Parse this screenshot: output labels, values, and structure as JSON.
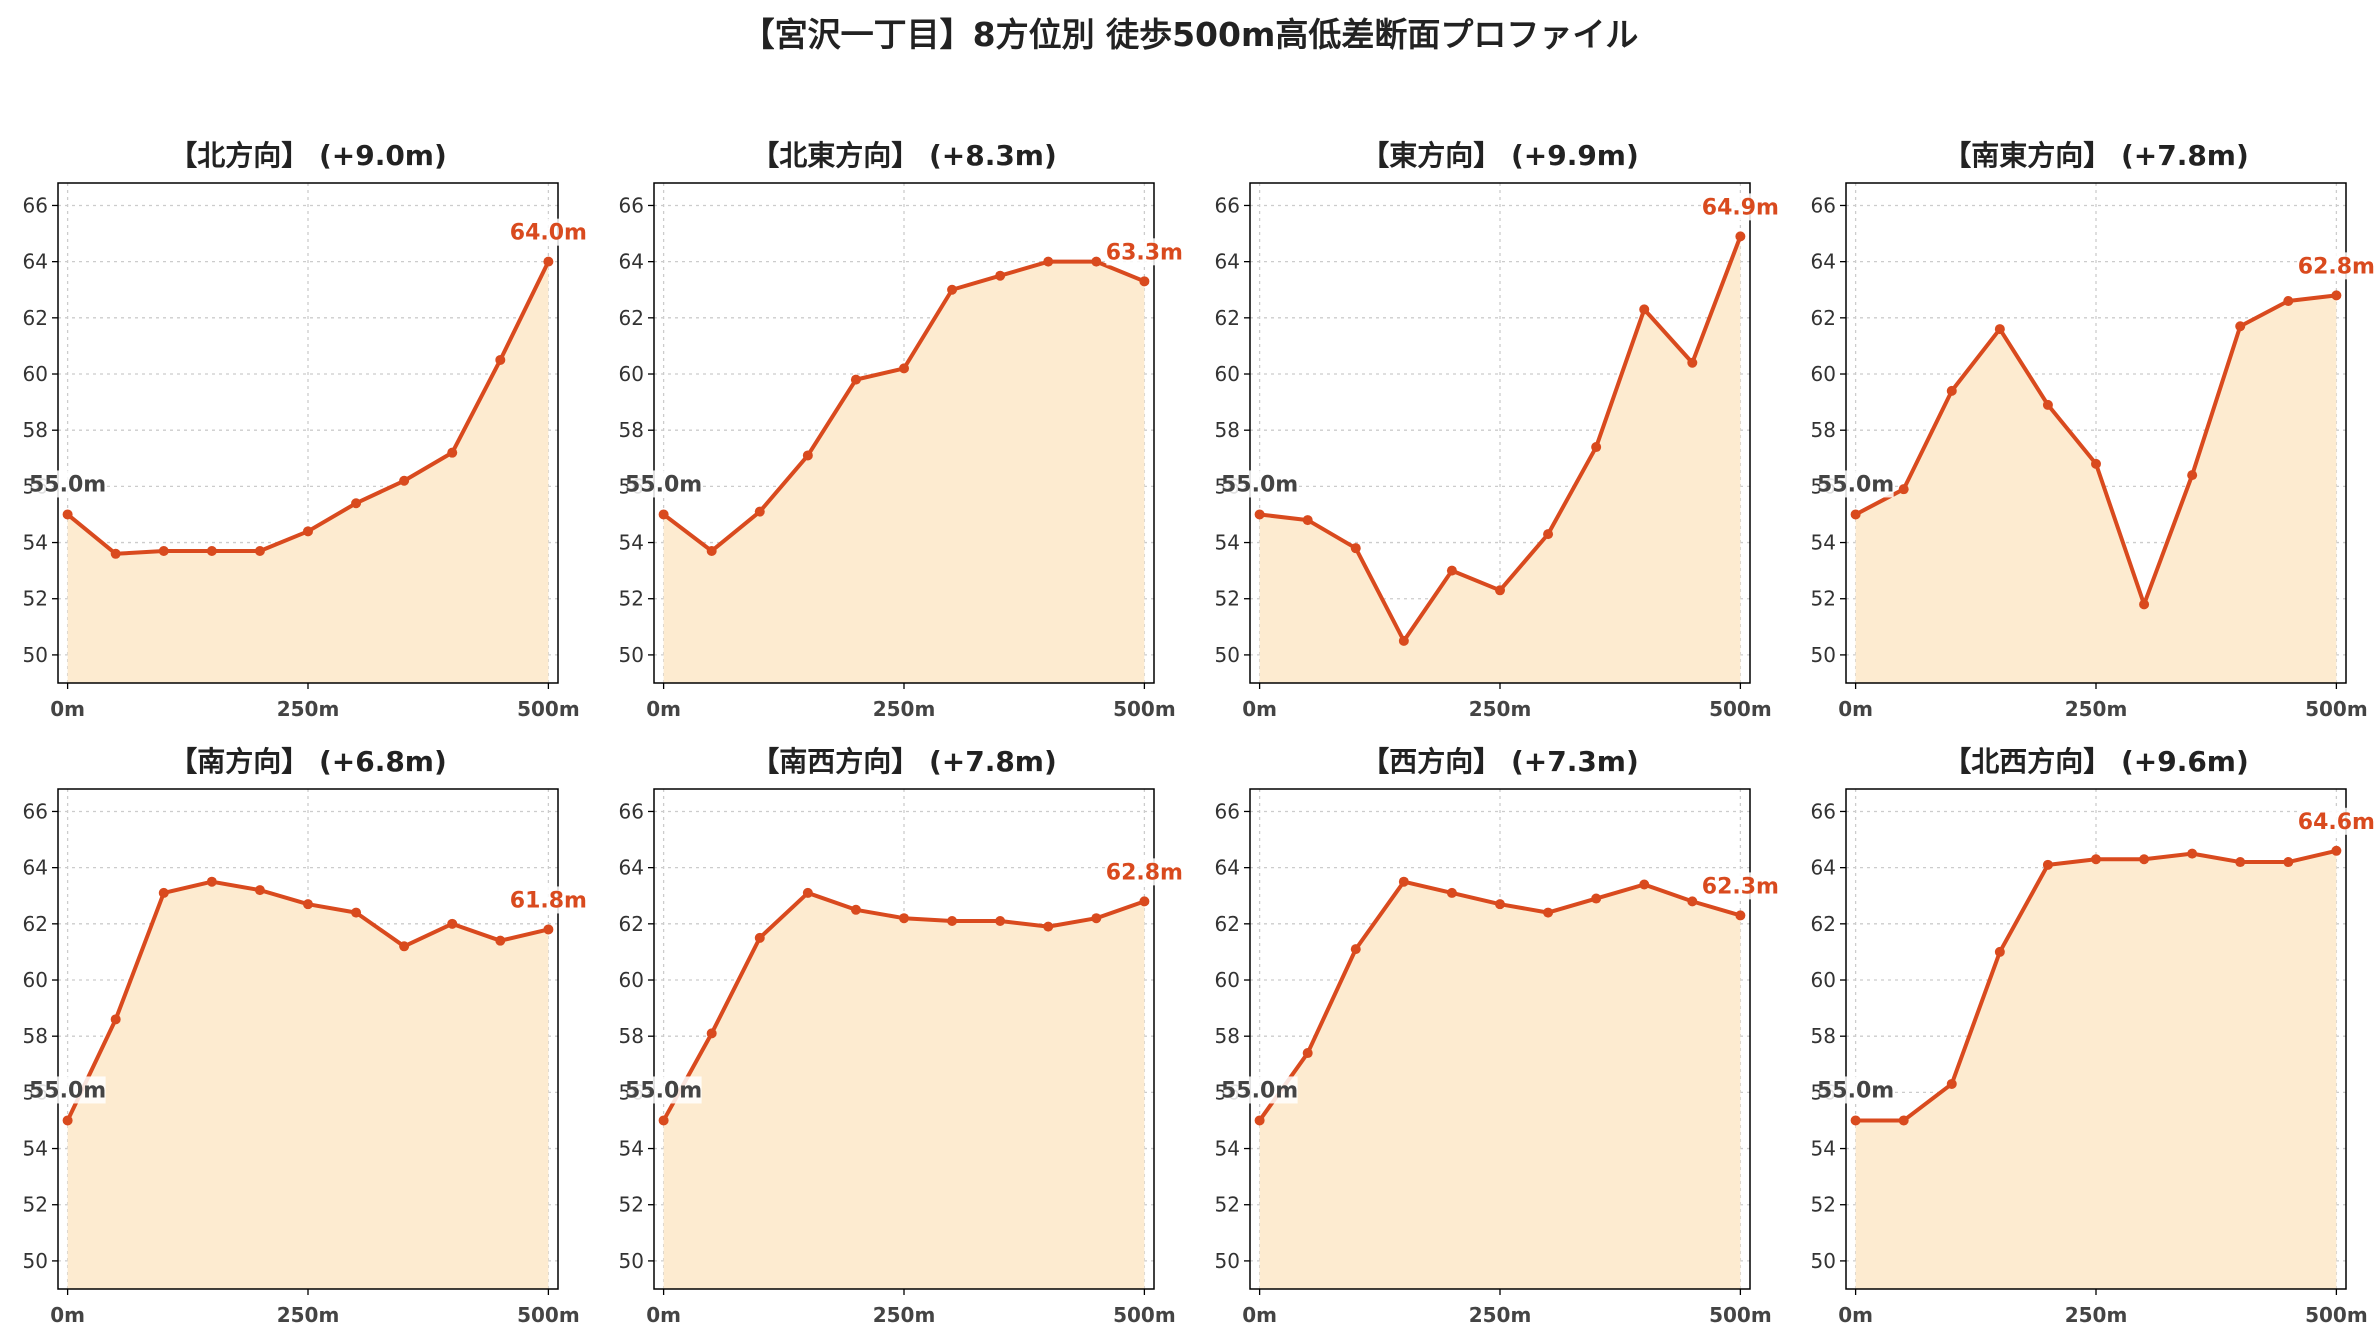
{
  "title": "【宮沢一丁目】8方位別 徒歩500m高低差断面プロファイル",
  "colors": {
    "line": "#d94a1e",
    "fill": "#fdebd0",
    "start_label": "#444444",
    "grid": "#cccccc"
  },
  "chart_data": [
    {
      "type": "area",
      "title": "【北方向】 (+9.0m)",
      "x": [
        0,
        50,
        100,
        150,
        200,
        250,
        300,
        350,
        400,
        450,
        500
      ],
      "y": [
        55.0,
        53.6,
        53.7,
        53.7,
        53.7,
        54.4,
        55.4,
        56.2,
        57.2,
        60.5,
        64.0
      ],
      "start_label": "55.0m",
      "end_label": "64.0m",
      "xticks": [
        "0m",
        "250m",
        "500m"
      ],
      "yticks": [
        "50",
        "52",
        "54",
        "56",
        "58",
        "60",
        "62",
        "64",
        "66"
      ],
      "ylim": [
        49,
        66.8
      ],
      "xlim": [
        -10,
        510
      ],
      "grid": true
    },
    {
      "type": "area",
      "title": "【北東方向】 (+8.3m)",
      "x": [
        0,
        50,
        100,
        150,
        200,
        250,
        300,
        350,
        400,
        450,
        500
      ],
      "y": [
        55.0,
        53.7,
        55.1,
        57.1,
        59.8,
        60.2,
        63.0,
        63.5,
        64.0,
        64.0,
        63.3
      ],
      "start_label": "55.0m",
      "end_label": "63.3m",
      "xticks": [
        "0m",
        "250m",
        "500m"
      ],
      "yticks": [
        "50",
        "52",
        "54",
        "56",
        "58",
        "60",
        "62",
        "64",
        "66"
      ],
      "ylim": [
        49,
        66.8
      ],
      "xlim": [
        -10,
        510
      ],
      "grid": true
    },
    {
      "type": "area",
      "title": "【東方向】 (+9.9m)",
      "x": [
        0,
        50,
        100,
        150,
        200,
        250,
        300,
        350,
        400,
        450,
        500
      ],
      "y": [
        55.0,
        54.8,
        53.8,
        50.5,
        53.0,
        52.3,
        54.3,
        57.4,
        62.3,
        60.4,
        64.9
      ],
      "start_label": "55.0m",
      "end_label": "64.9m",
      "xticks": [
        "0m",
        "250m",
        "500m"
      ],
      "yticks": [
        "50",
        "52",
        "54",
        "56",
        "58",
        "60",
        "62",
        "64",
        "66"
      ],
      "ylim": [
        49,
        66.8
      ],
      "xlim": [
        -10,
        510
      ],
      "grid": true
    },
    {
      "type": "area",
      "title": "【南東方向】 (+7.8m)",
      "x": [
        0,
        50,
        100,
        150,
        200,
        250,
        300,
        350,
        400,
        450,
        500
      ],
      "y": [
        55.0,
        55.9,
        59.4,
        61.6,
        58.9,
        56.8,
        51.8,
        56.4,
        61.7,
        62.6,
        62.8
      ],
      "start_label": "55.0m",
      "end_label": "62.8m",
      "xticks": [
        "0m",
        "250m",
        "500m"
      ],
      "yticks": [
        "50",
        "52",
        "54",
        "56",
        "58",
        "60",
        "62",
        "64",
        "66"
      ],
      "ylim": [
        49,
        66.8
      ],
      "xlim": [
        -10,
        510
      ],
      "grid": true
    },
    {
      "type": "area",
      "title": "【南方向】 (+6.8m)",
      "x": [
        0,
        50,
        100,
        150,
        200,
        250,
        300,
        350,
        400,
        450,
        500
      ],
      "y": [
        55.0,
        58.6,
        63.1,
        63.5,
        63.2,
        62.7,
        62.4,
        61.2,
        62.0,
        61.4,
        61.8
      ],
      "start_label": "55.0m",
      "end_label": "61.8m",
      "xticks": [
        "0m",
        "250m",
        "500m"
      ],
      "yticks": [
        "50",
        "52",
        "54",
        "56",
        "58",
        "60",
        "62",
        "64",
        "66"
      ],
      "ylim": [
        49,
        66.8
      ],
      "xlim": [
        -10,
        510
      ],
      "grid": true
    },
    {
      "type": "area",
      "title": "【南西方向】 (+7.8m)",
      "x": [
        0,
        50,
        100,
        150,
        200,
        250,
        300,
        350,
        400,
        450,
        500
      ],
      "y": [
        55.0,
        58.1,
        61.5,
        63.1,
        62.5,
        62.2,
        62.1,
        62.1,
        61.9,
        62.2,
        62.8
      ],
      "start_label": "55.0m",
      "end_label": "62.8m",
      "xticks": [
        "0m",
        "250m",
        "500m"
      ],
      "yticks": [
        "50",
        "52",
        "54",
        "56",
        "58",
        "60",
        "62",
        "64",
        "66"
      ],
      "ylim": [
        49,
        66.8
      ],
      "xlim": [
        -10,
        510
      ],
      "grid": true
    },
    {
      "type": "area",
      "title": "【西方向】 (+7.3m)",
      "x": [
        0,
        50,
        100,
        150,
        200,
        250,
        300,
        350,
        400,
        450,
        500
      ],
      "y": [
        55.0,
        57.4,
        61.1,
        63.5,
        63.1,
        62.7,
        62.4,
        62.9,
        63.4,
        62.8,
        62.3
      ],
      "start_label": "55.0m",
      "end_label": "62.3m",
      "xticks": [
        "0m",
        "250m",
        "500m"
      ],
      "yticks": [
        "50",
        "52",
        "54",
        "56",
        "58",
        "60",
        "62",
        "64",
        "66"
      ],
      "ylim": [
        49,
        66.8
      ],
      "xlim": [
        -10,
        510
      ],
      "grid": true
    },
    {
      "type": "area",
      "title": "【北西方向】 (+9.6m)",
      "x": [
        0,
        50,
        100,
        150,
        200,
        250,
        300,
        350,
        400,
        450,
        500
      ],
      "y": [
        55.0,
        55.0,
        56.3,
        61.0,
        64.1,
        64.3,
        64.3,
        64.5,
        64.2,
        64.2,
        64.6
      ],
      "start_label": "55.0m",
      "end_label": "64.6m",
      "xticks": [
        "0m",
        "250m",
        "500m"
      ],
      "yticks": [
        "50",
        "52",
        "54",
        "56",
        "58",
        "60",
        "62",
        "64",
        "66"
      ],
      "ylim": [
        49,
        66.8
      ],
      "xlim": [
        -10,
        510
      ],
      "grid": true
    }
  ]
}
